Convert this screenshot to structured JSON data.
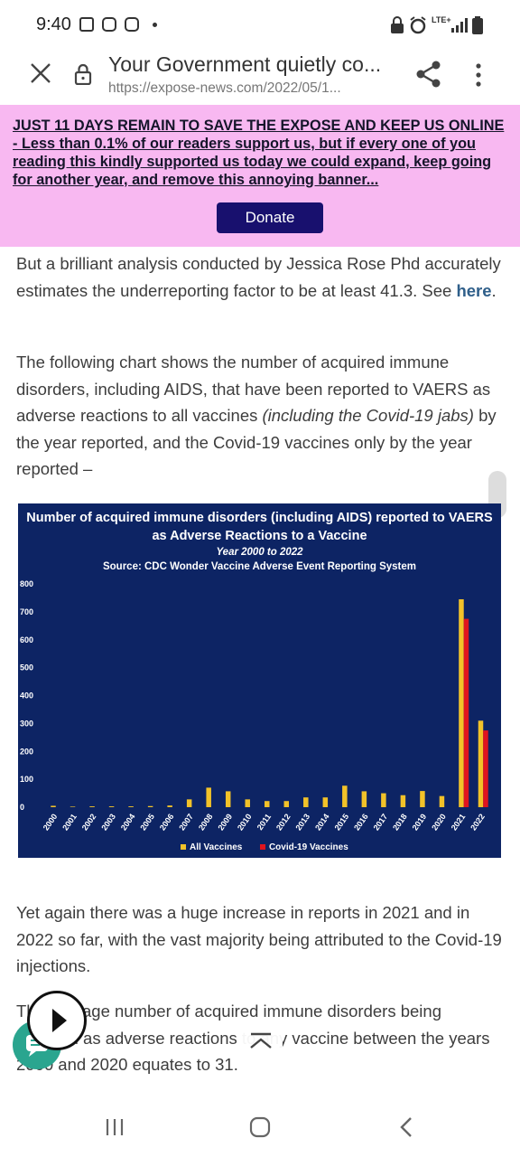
{
  "status_bar": {
    "time": "9:40",
    "network": "LTE+"
  },
  "browser": {
    "page_title": "Your Government quietly co...",
    "url": "https://expose-news.com/2022/05/1..."
  },
  "banner": {
    "text": "JUST 11 DAYS REMAIN TO SAVE THE EXPOSE AND KEEP US ONLINE - Less than 0.1% of our readers support us, but if every one of you reading this kindly supported us today we could expand, keep going for another year, and remove this annoying banner...",
    "donate_label": "Donate"
  },
  "article": {
    "p1_text": "But a brilliant analysis conducted by Jessica Rose Phd accurately estimates the underreporting factor to be at least 41.3. See ",
    "p1_link": "here",
    "p1_end": ".",
    "p2_a": "The following chart shows the number of acquired immune disorders, including AIDS, that have been reported to VAERS as adverse reactions to all vaccines ",
    "p2_em": "(including the Covid-19 jabs)",
    "p2_b": " by the year reported, and the Covid-19 vaccines only by the year reported –",
    "p3": "Yet again there was a huge increase in reports in 2021 and in 2022 so far, with the vast majority being attributed to the Covid-19 injections.",
    "p4": "The average number of acquired immune disorders being reported as adverse reactions to any vaccine between the years 2000 and 2020 equates to 31."
  },
  "chart_data": {
    "type": "bar",
    "title": "Number of acquired immune disorders (including AIDS) reported to VAERS as Adverse Reactions to a Vaccine",
    "subtitle": "Year 2000 to 2022",
    "source": "Source: CDC Wonder Vaccine Adverse Event Reporting System",
    "ylim": [
      0,
      800
    ],
    "yticks": [
      0,
      100,
      200,
      300,
      400,
      500,
      600,
      700,
      800
    ],
    "categories": [
      "2000",
      "2001",
      "2002",
      "2003",
      "2004",
      "2005",
      "2006",
      "2007",
      "2008",
      "2009",
      "2010",
      "2011",
      "2012",
      "2013",
      "2014",
      "2015",
      "2016",
      "2017",
      "2018",
      "2019",
      "2020",
      "2021",
      "2022"
    ],
    "series": [
      {
        "name": "All Vaccines",
        "color": "#f2c229",
        "values": [
          5,
          2,
          3,
          3,
          3,
          4,
          6,
          28,
          70,
          57,
          28,
          22,
          22,
          35,
          35,
          77,
          57,
          50,
          43,
          58,
          40,
          745,
          310
        ]
      },
      {
        "name": "Covid-19 Vaccines",
        "color": "#e0141e",
        "values": [
          0,
          0,
          0,
          0,
          0,
          0,
          0,
          0,
          0,
          0,
          0,
          0,
          0,
          0,
          0,
          0,
          0,
          0,
          0,
          0,
          0,
          675,
          275
        ]
      }
    ],
    "legend_position": "bottom"
  }
}
